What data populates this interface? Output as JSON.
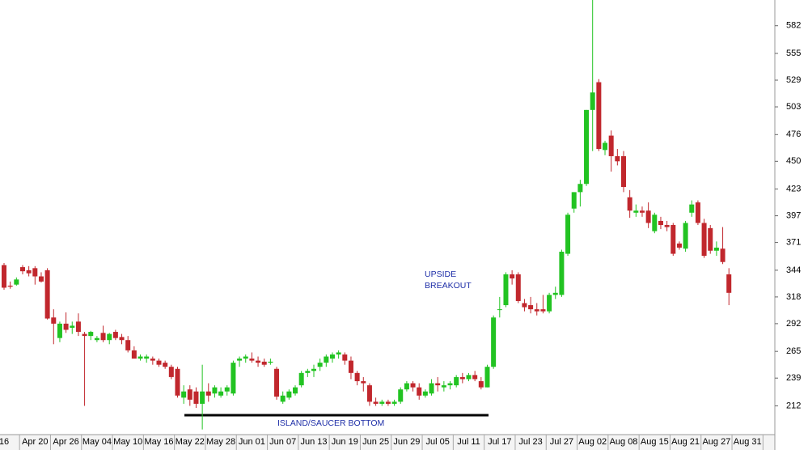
{
  "chart_data": {
    "type": "candlestick",
    "categories": [
      "16",
      null,
      null,
      null,
      null,
      "Apr 20",
      null,
      null,
      null,
      null,
      "Apr 26",
      null,
      null,
      null,
      null,
      "May 04",
      null,
      null,
      null,
      null,
      "May 10",
      null,
      null,
      null,
      null,
      "May 16",
      null,
      null,
      null,
      null,
      "May 22",
      null,
      null,
      null,
      null,
      "May 28",
      null,
      null,
      null,
      null,
      "Jun 01",
      null,
      null,
      null,
      null,
      "Jun 07",
      null,
      null,
      null,
      null,
      "Jun 13",
      null,
      null,
      null,
      null,
      "Jun 19",
      null,
      null,
      null,
      null,
      "Jun 25",
      null,
      null,
      null,
      null,
      "Jun 29",
      null,
      null,
      null,
      null,
      "Jul 05",
      null,
      null,
      null,
      null,
      "Jul 11",
      null,
      null,
      null,
      null,
      "Jul 17",
      null,
      null,
      null,
      null,
      "Jul 23",
      null,
      null,
      null,
      null,
      "Jul 27",
      null,
      null,
      null,
      null,
      "Aug 02",
      null,
      null,
      null,
      null,
      "Aug 08",
      null,
      null,
      null,
      null,
      "Aug 15",
      null,
      null,
      null,
      null,
      "Aug 21",
      null,
      null,
      null,
      null,
      "Aug 27",
      null,
      null,
      null,
      null,
      "Aug 31"
    ],
    "open": [
      349,
      329,
      330,
      347,
      344,
      346,
      338,
      344,
      298,
      278,
      292,
      288,
      294,
      282,
      280,
      276,
      283,
      276,
      284,
      279,
      276,
      266,
      258,
      258,
      258,
      256,
      254,
      250,
      248,
      220,
      228,
      226,
      214,
      226,
      224,
      222,
      226,
      224,
      256,
      258,
      258,
      256,
      255,
      254,
      248,
      216,
      220,
      224,
      232,
      244,
      246,
      250,
      254,
      258,
      262,
      262,
      256,
      244,
      236,
      232,
      216,
      214,
      216,
      214,
      216,
      228,
      234,
      230,
      222,
      224,
      234,
      230,
      232,
      232,
      240,
      238,
      242,
      236,
      230,
      250,
      306,
      310,
      340,
      340,
      312,
      310,
      306,
      306,
      304,
      320,
      320,
      360,
      404,
      420,
      428,
      500,
      527,
      461,
      475,
      455,
      455,
      415,
      400,
      402,
      402,
      382,
      392,
      388,
      388,
      370,
      365,
      400,
      410,
      390,
      385,
      363,
      365,
      340,
      null,
      null,
      null
    ],
    "high": [
      351,
      333,
      337,
      349,
      348,
      348,
      342,
      346,
      306,
      294,
      303,
      294,
      302,
      284,
      285,
      280,
      290,
      283,
      286,
      282,
      280,
      270,
      262,
      262,
      260,
      258,
      256,
      252,
      250,
      232,
      232,
      230,
      252,
      234,
      232,
      230,
      232,
      256,
      260,
      262,
      264,
      260,
      258,
      258,
      250,
      226,
      228,
      232,
      246,
      248,
      252,
      258,
      262,
      264,
      266,
      264,
      260,
      246,
      240,
      234,
      220,
      218,
      218,
      218,
      230,
      236,
      236,
      234,
      228,
      238,
      240,
      236,
      236,
      242,
      244,
      244,
      246,
      240,
      252,
      300,
      318,
      342,
      344,
      342,
      316,
      318,
      312,
      320,
      322,
      328,
      364,
      400,
      420,
      432,
      500,
      607,
      530,
      470,
      480,
      462,
      460,
      422,
      408,
      406,
      410,
      400,
      396,
      392,
      390,
      372,
      392,
      412,
      412,
      394,
      388,
      372,
      386,
      346,
      null,
      null,
      null
    ],
    "low": [
      325,
      326,
      329,
      340,
      338,
      330,
      332,
      296,
      272,
      274,
      283,
      282,
      280,
      212,
      276,
      274,
      274,
      272,
      276,
      272,
      264,
      258,
      256,
      254,
      252,
      250,
      248,
      238,
      220,
      214,
      212,
      210,
      189,
      216,
      220,
      220,
      222,
      222,
      250,
      254,
      254,
      250,
      250,
      252,
      218,
      214,
      218,
      222,
      230,
      240,
      240,
      246,
      250,
      254,
      258,
      252,
      238,
      232,
      226,
      212,
      212,
      212,
      212,
      212,
      214,
      226,
      226,
      218,
      220,
      222,
      226,
      226,
      228,
      230,
      234,
      236,
      236,
      228,
      230,
      248,
      298,
      308,
      330,
      312,
      304,
      302,
      300,
      302,
      302,
      316,
      318,
      358,
      400,
      406,
      426,
      460,
      460,
      456,
      440,
      446,
      420,
      395,
      396,
      396,
      385,
      380,
      384,
      382,
      358,
      364,
      362,
      396,
      388,
      356,
      360,
      358,
      350,
      310,
      null,
      null,
      null
    ],
    "close": [
      327,
      328,
      335,
      343,
      341,
      338,
      333,
      297,
      292,
      292,
      286,
      290,
      284,
      280,
      284,
      278,
      276,
      282,
      278,
      276,
      266,
      258,
      260,
      260,
      256,
      252,
      250,
      240,
      222,
      226,
      218,
      214,
      226,
      222,
      230,
      226,
      230,
      254,
      258,
      260,
      256,
      254,
      252,
      255,
      221,
      222,
      226,
      230,
      244,
      246,
      248,
      254,
      260,
      262,
      264,
      256,
      244,
      236,
      234,
      216,
      214,
      216,
      214,
      216,
      228,
      234,
      230,
      222,
      226,
      234,
      232,
      232,
      234,
      240,
      238,
      242,
      238,
      230,
      250,
      298,
      306,
      340,
      336,
      314,
      308,
      306,
      304,
      304,
      320,
      322,
      362,
      398,
      420,
      428,
      500,
      517,
      462,
      468,
      455,
      450,
      425,
      402,
      402,
      400,
      390,
      398,
      388,
      386,
      360,
      366,
      390,
      408,
      390,
      358,
      363,
      366,
      352,
      322,
      null,
      null,
      null
    ],
    "up_color": "#22c322",
    "down_color": "#c1272d",
    "ylim": [
      184,
      607
    ],
    "yticks": [
      212,
      239,
      265,
      292,
      318,
      344,
      371,
      397,
      423,
      450,
      476,
      503,
      529,
      555,
      582
    ],
    "annotations": [
      "UPSIDE",
      "BREAKOUT",
      "ISLAND/SAUCER BOTTOM"
    ]
  }
}
